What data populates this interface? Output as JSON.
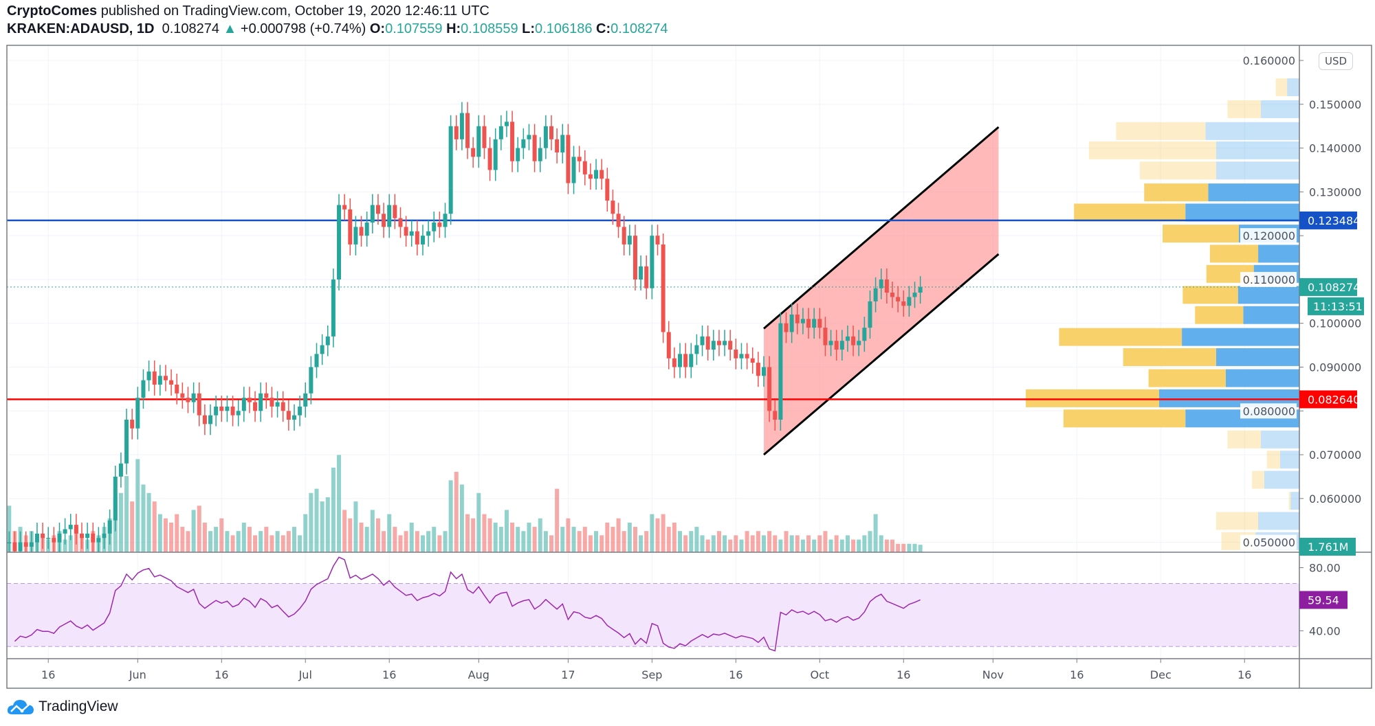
{
  "header": {
    "author": "CryptoComes",
    "published": "published on TradingView.com, October 19, 2020 12:46:11 UTC",
    "symbol": "KRAKEN:ADAUSD, 1D",
    "last": "0.108274",
    "change": "+0.000798 (+0.74%)",
    "o_label": "O:",
    "o": "0.107559",
    "h_label": "H:",
    "h": "0.108559",
    "l_label": "L:",
    "l": "0.106186",
    "c_label": "C:",
    "c": "0.108274",
    "up_arrow": "▲"
  },
  "currency_button": "USD",
  "footer": {
    "brand": "TradingView",
    "icon": "tradingview-cloud-logo"
  },
  "colors": {
    "up": "#26a69a",
    "down": "#ef5350",
    "blue_line": "#1552c7",
    "red_line": "#ff0000",
    "channel_fill": "#ff8a8a",
    "rsi": "#9c27b0",
    "vp_up": "#5aabec",
    "vp_down": "#f8cf63"
  },
  "chart_data": {
    "type": "candlestick",
    "start_date": "2020-05-09",
    "end_date": "2020-10-19",
    "interval": "1D",
    "ylim": [
      0.05,
      0.16
    ],
    "price_ticks": [
      "0.160000",
      "0.150000",
      "0.140000",
      "0.130000",
      "0.120000",
      "0.110000",
      "0.100000",
      "0.090000",
      "0.080000",
      "0.070000",
      "0.060000",
      "0.050000"
    ],
    "time_ticks": [
      {
        "label": "16",
        "date": "2020-05-16"
      },
      {
        "label": "Jun",
        "date": "2020-06-01"
      },
      {
        "label": "16",
        "date": "2020-06-16"
      },
      {
        "label": "Jul",
        "date": "2020-07-01"
      },
      {
        "label": "16",
        "date": "2020-07-16"
      },
      {
        "label": "Aug",
        "date": "2020-08-01"
      },
      {
        "label": "17",
        "date": "2020-08-17"
      },
      {
        "label": "Sep",
        "date": "2020-09-01"
      },
      {
        "label": "16",
        "date": "2020-09-16"
      },
      {
        "label": "Oct",
        "date": "2020-10-01"
      },
      {
        "label": "16",
        "date": "2020-10-16"
      },
      {
        "label": "Nov",
        "date": "2020-11-01"
      },
      {
        "label": "16",
        "date": "2020-11-16"
      },
      {
        "label": "Dec",
        "date": "2020-12-01"
      },
      {
        "label": "16",
        "date": "2020-12-16"
      }
    ],
    "close": [
      0.05,
      0.048,
      0.05,
      0.049,
      0.05,
      0.052,
      0.051,
      0.051,
      0.05,
      0.052,
      0.053,
      0.054,
      0.052,
      0.051,
      0.052,
      0.05,
      0.051,
      0.052,
      0.055,
      0.065,
      0.068,
      0.078,
      0.076,
      0.083,
      0.087,
      0.089,
      0.086,
      0.088,
      0.087,
      0.086,
      0.084,
      0.083,
      0.082,
      0.084,
      0.079,
      0.077,
      0.079,
      0.081,
      0.08,
      0.081,
      0.079,
      0.08,
      0.083,
      0.082,
      0.08,
      0.084,
      0.083,
      0.081,
      0.082,
      0.08,
      0.078,
      0.079,
      0.081,
      0.084,
      0.09,
      0.093,
      0.095,
      0.097,
      0.11,
      0.127,
      0.126,
      0.118,
      0.122,
      0.12,
      0.123,
      0.127,
      0.125,
      0.122,
      0.127,
      0.124,
      0.122,
      0.12,
      0.121,
      0.118,
      0.12,
      0.121,
      0.123,
      0.122,
      0.125,
      0.145,
      0.142,
      0.148,
      0.14,
      0.138,
      0.145,
      0.14,
      0.135,
      0.142,
      0.145,
      0.146,
      0.137,
      0.14,
      0.142,
      0.143,
      0.137,
      0.14,
      0.145,
      0.142,
      0.139,
      0.143,
      0.132,
      0.138,
      0.137,
      0.134,
      0.133,
      0.135,
      0.133,
      0.128,
      0.125,
      0.122,
      0.118,
      0.12,
      0.11,
      0.113,
      0.108,
      0.12,
      0.118,
      0.098,
      0.092,
      0.09,
      0.093,
      0.09,
      0.093,
      0.095,
      0.097,
      0.094,
      0.096,
      0.095,
      0.096,
      0.094,
      0.092,
      0.093,
      0.092,
      0.091,
      0.088,
      0.09,
      0.08,
      0.078,
      0.1,
      0.098,
      0.102,
      0.1,
      0.101,
      0.099,
      0.101,
      0.099,
      0.095,
      0.096,
      0.094,
      0.096,
      0.097,
      0.095,
      0.096,
      0.099,
      0.105,
      0.108,
      0.11,
      0.107,
      0.106,
      0.105,
      0.104,
      0.106,
      0.107,
      0.108274
    ],
    "volume_millions": [
      11,
      5,
      6,
      4,
      5,
      3,
      4,
      3,
      4,
      5,
      3,
      4,
      6,
      4,
      3,
      5,
      4,
      6,
      8,
      13,
      14,
      18,
      12,
      22,
      16,
      14,
      12,
      9,
      8,
      7,
      9,
      6,
      5,
      10,
      11,
      7,
      5,
      6,
      8,
      5,
      4,
      5,
      7,
      6,
      4,
      5,
      6,
      4,
      5,
      4,
      5,
      6,
      4,
      9,
      14,
      15,
      12,
      13,
      20,
      23,
      10,
      8,
      12,
      7,
      6,
      10,
      8,
      5,
      9,
      6,
      4,
      5,
      7,
      5,
      4,
      5,
      6,
      4,
      5,
      17,
      19,
      16,
      9,
      8,
      14,
      9,
      8,
      7,
      6,
      10,
      7,
      6,
      5,
      7,
      6,
      8,
      5,
      4,
      15,
      6,
      8,
      6,
      5,
      6,
      4,
      5,
      4,
      7,
      6,
      8,
      5,
      7,
      6,
      4,
      5,
      9,
      8,
      9,
      6,
      7,
      5,
      4,
      5,
      6,
      4,
      3,
      4,
      5,
      4,
      3,
      4,
      3,
      5,
      4,
      5,
      4,
      5,
      4,
      3,
      5,
      4,
      4,
      3,
      4,
      3,
      4,
      5,
      3,
      4,
      3,
      4,
      3,
      3,
      4,
      5,
      9,
      4,
      3,
      3,
      2,
      2,
      2,
      2,
      1.761
    ],
    "volume_label": "1.761M",
    "last_price": 0.108274,
    "last_price_label": "0.108274",
    "countdown": "11:13:51",
    "horizontal_lines": [
      {
        "price": 0.123484,
        "label": "0.123484",
        "color": "#1552c7"
      },
      {
        "price": 0.08264,
        "label": "0.082640",
        "color": "#ff0000"
      }
    ],
    "channel": {
      "upper": [
        {
          "date": "2020-09-21",
          "price": 0.0988
        },
        {
          "date": "2020-11-02",
          "price": 0.1448
        }
      ],
      "lower": [
        {
          "date": "2020-09-21",
          "price": 0.07
        },
        {
          "date": "2020-11-02",
          "price": 0.1158
        }
      ]
    },
    "volume_profile": [
      {
        "price": 0.1538,
        "up": 14,
        "down": 13,
        "value_area": false
      },
      {
        "price": 0.1488,
        "up": 44,
        "down": 38,
        "value_area": false
      },
      {
        "price": 0.1438,
        "up": 107,
        "down": 102,
        "value_area": false
      },
      {
        "price": 0.1394,
        "up": 95,
        "down": 145,
        "value_area": false
      },
      {
        "price": 0.1348,
        "up": 95,
        "down": 87,
        "value_area": false
      },
      {
        "price": 0.1298,
        "up": 104,
        "down": 73,
        "value_area": true
      },
      {
        "price": 0.1252,
        "up": 130,
        "down": 127,
        "value_area": true
      },
      {
        "price": 0.1204,
        "up": 69,
        "down": 87,
        "value_area": true
      },
      {
        "price": 0.1158,
        "up": 47,
        "down": 55,
        "value_area": true
      },
      {
        "price": 0.1112,
        "up": 52,
        "down": 54,
        "value_area": true
      },
      {
        "price": 0.1064,
        "up": 70,
        "down": 63,
        "value_area": true
      },
      {
        "price": 0.1018,
        "up": 64,
        "down": 55,
        "value_area": true
      },
      {
        "price": 0.0968,
        "up": 134,
        "down": 140,
        "value_area": true
      },
      {
        "price": 0.0922,
        "up": 95,
        "down": 106,
        "value_area": true
      },
      {
        "price": 0.0874,
        "up": 84,
        "down": 88,
        "value_area": true
      },
      {
        "price": 0.0828,
        "up": 160,
        "down": 152,
        "value_area": true
      },
      {
        "price": 0.0782,
        "up": 130,
        "down": 139,
        "value_area": true
      },
      {
        "price": 0.0734,
        "up": 44,
        "down": 38,
        "value_area": false
      },
      {
        "price": 0.0688,
        "up": 22,
        "down": 15,
        "value_area": false
      },
      {
        "price": 0.0642,
        "up": 40,
        "down": 14,
        "value_area": false
      },
      {
        "price": 0.0594,
        "up": 10,
        "down": 2,
        "value_area": false
      },
      {
        "price": 0.0548,
        "up": 47,
        "down": 48,
        "value_area": false
      },
      {
        "price": 0.0502,
        "up": 50,
        "down": 39,
        "value_area": false
      }
    ],
    "rsi": {
      "period": 14,
      "ticks": [
        "80.00",
        "40.00"
      ],
      "bands": [
        70,
        30
      ],
      "last_label": "59.54"
    }
  }
}
